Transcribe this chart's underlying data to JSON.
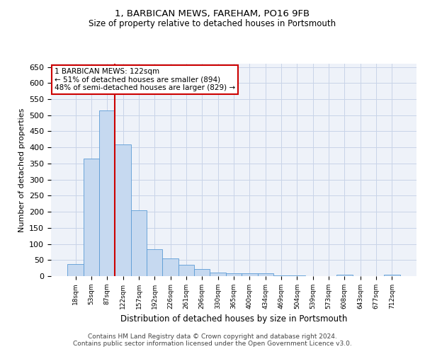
{
  "title1": "1, BARBICAN MEWS, FAREHAM, PO16 9FB",
  "title2": "Size of property relative to detached houses in Portsmouth",
  "xlabel": "Distribution of detached houses by size in Portsmouth",
  "ylabel": "Number of detached properties",
  "categories": [
    "18sqm",
    "53sqm",
    "87sqm",
    "122sqm",
    "157sqm",
    "192sqm",
    "226sqm",
    "261sqm",
    "296sqm",
    "330sqm",
    "365sqm",
    "400sqm",
    "434sqm",
    "469sqm",
    "504sqm",
    "539sqm",
    "573sqm",
    "608sqm",
    "643sqm",
    "677sqm",
    "712sqm"
  ],
  "values": [
    37,
    365,
    515,
    410,
    205,
    83,
    55,
    35,
    22,
    12,
    8,
    8,
    8,
    3,
    3,
    0,
    0,
    4,
    0,
    0,
    4
  ],
  "bar_color": "#c6d9f0",
  "bar_edge_color": "#5b9bd5",
  "vline_index": 3,
  "vline_color": "#cc0000",
  "annotation_text": "1 BARBICAN MEWS: 122sqm\n← 51% of detached houses are smaller (894)\n48% of semi-detached houses are larger (829) →",
  "annotation_box_color": "#ffffff",
  "annotation_box_edge": "#cc0000",
  "ylim": [
    0,
    660
  ],
  "yticks": [
    0,
    50,
    100,
    150,
    200,
    250,
    300,
    350,
    400,
    450,
    500,
    550,
    600,
    650
  ],
  "grid_color": "#c8d4e8",
  "footnote": "Contains HM Land Registry data © Crown copyright and database right 2024.\nContains public sector information licensed under the Open Government Licence v3.0.",
  "bg_color": "#eef2f9"
}
